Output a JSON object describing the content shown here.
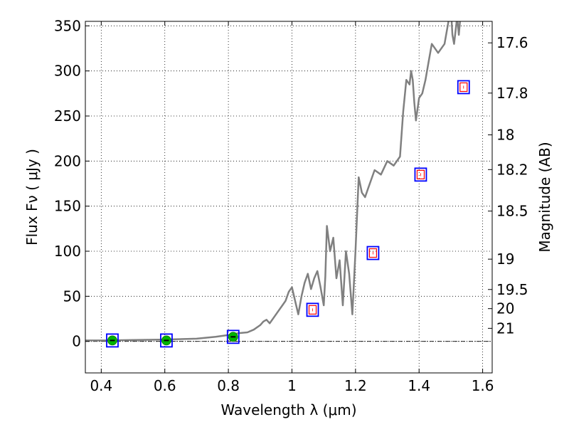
{
  "chart_data": {
    "type": "line",
    "xlabel": "Wavelength  λ (μm)",
    "ylabel": "Flux  Fν  ( μJy )",
    "ylabel_right": "Magnitude (AB)",
    "xlim": [
      0.35,
      1.63
    ],
    "ylim": [
      -35,
      355
    ],
    "x_ticks": [
      0.4,
      0.6,
      0.8,
      1.0,
      1.2,
      1.4,
      1.6
    ],
    "x_tick_labels": [
      "0.4",
      "0.6",
      "0.8",
      "1",
      "1.2",
      "1.4",
      "1.6"
    ],
    "y_ticks": [
      0,
      50,
      100,
      150,
      200,
      250,
      300,
      350
    ],
    "y_tick_labels": [
      "0",
      "50",
      "100",
      "150",
      "200",
      "250",
      "300",
      "350"
    ],
    "magnitude_ticks": [
      "17.6",
      "17.8",
      "18",
      "18.2",
      "18.5",
      "19",
      "19.5",
      "20",
      "21"
    ],
    "grid": true,
    "zero_line": true,
    "series": [
      {
        "kind": "spectrum-line",
        "color": "#808080",
        "x": [
          0.35,
          0.42,
          0.5,
          0.6,
          0.7,
          0.76,
          0.8,
          0.83,
          0.86,
          0.88,
          0.9,
          0.91,
          0.92,
          0.93,
          0.95,
          0.96,
          0.97,
          0.98,
          0.99,
          1.0,
          1.01,
          1.02,
          1.03,
          1.04,
          1.05,
          1.06,
          1.07,
          1.08,
          1.09,
          1.1,
          1.105,
          1.11,
          1.12,
          1.13,
          1.14,
          1.15,
          1.16,
          1.17,
          1.18,
          1.19,
          1.2,
          1.21,
          1.22,
          1.23,
          1.24,
          1.26,
          1.28,
          1.3,
          1.32,
          1.34,
          1.35,
          1.36,
          1.37,
          1.375,
          1.38,
          1.385,
          1.39,
          1.4,
          1.41,
          1.42,
          1.43,
          1.44,
          1.46,
          1.48,
          1.5,
          1.505,
          1.51,
          1.52,
          1.525,
          1.53
        ],
        "y": [
          1,
          1,
          1.5,
          2,
          3,
          5,
          7,
          9,
          10,
          13,
          18,
          22,
          24,
          20,
          30,
          35,
          40,
          45,
          55,
          60,
          45,
          30,
          50,
          65,
          75,
          58,
          70,
          78,
          60,
          40,
          72,
          128,
          100,
          115,
          70,
          90,
          40,
          100,
          75,
          30,
          100,
          182,
          165,
          160,
          170,
          190,
          185,
          200,
          195,
          205,
          255,
          290,
          285,
          300,
          290,
          265,
          245,
          270,
          275,
          290,
          310,
          330,
          320,
          330,
          370,
          340,
          330,
          360,
          340,
          360
        ]
      },
      {
        "kind": "photometry-green-points",
        "color": "#00b300",
        "x": [
          0.435,
          0.605,
          0.815
        ],
        "y": [
          1,
          1,
          5
        ]
      },
      {
        "kind": "blue-squares",
        "color": "#0000ff",
        "x": [
          0.435,
          0.605,
          0.815,
          1.065,
          1.255,
          1.405,
          1.54
        ],
        "y": [
          1,
          1,
          5,
          35,
          98,
          185,
          282
        ]
      },
      {
        "kind": "red-squares",
        "color": "#ff0000",
        "x": [
          1.065,
          1.255,
          1.405,
          1.54
        ],
        "y": [
          35,
          98,
          185,
          282
        ]
      }
    ]
  }
}
